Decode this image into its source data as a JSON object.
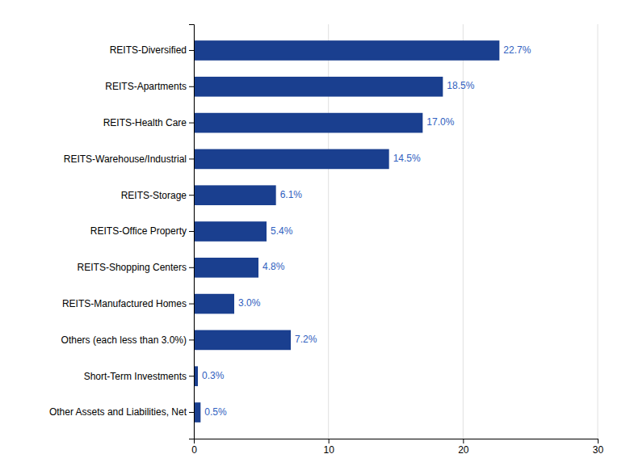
{
  "chart_data": {
    "type": "bar",
    "orientation": "horizontal",
    "categories": [
      "Other Assets and Liabilities, Net",
      "Short-Term Investments",
      "Others (each less than 3.0%)",
      "REITS-Manufactured Homes",
      "REITS-Shopping Centers",
      "REITS-Office Property",
      "REITS-Storage",
      "REITS-Warehouse/Industrial",
      "REITS-Health Care",
      "REITS-Apartments",
      "REITS-Diversified"
    ],
    "values": [
      0.5,
      0.3,
      7.2,
      3.0,
      4.8,
      5.4,
      6.1,
      14.5,
      17.0,
      18.5,
      22.7
    ],
    "value_labels": [
      "0.5%",
      "0.3%",
      "7.2%",
      "3.0%",
      "4.8%",
      "5.4%",
      "6.1%",
      "14.5%",
      "17.0%",
      "18.5%",
      "22.7%"
    ],
    "data_labels": true,
    "color": "#1a3f8f",
    "xlim": [
      0,
      30
    ],
    "xticks": [
      0,
      10,
      20,
      30
    ],
    "grid": true
  }
}
